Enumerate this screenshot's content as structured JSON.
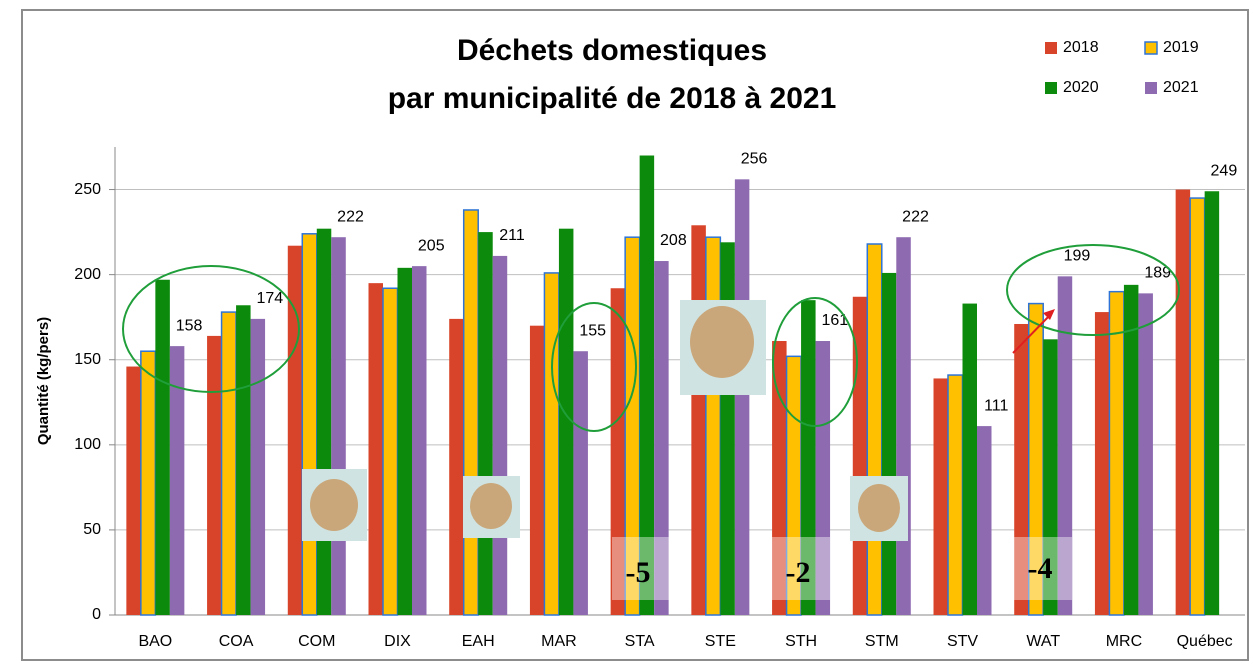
{
  "chart_data": {
    "type": "bar",
    "title": [
      "Déchets domestiques",
      "par municipalité de 2018 à 2021"
    ],
    "ylabel": "Quantité  (kg/pers)",
    "categories": [
      "BAO",
      "COA",
      "COM",
      "DIX",
      "EAH",
      "MAR",
      "STA",
      "STE",
      "STH",
      "STM",
      "STV",
      "WAT",
      "MRC",
      "Québec"
    ],
    "series": [
      {
        "name": "2018",
        "color": "#d8442a",
        "values": [
          146,
          164,
          217,
          195,
          174,
          170,
          192,
          229,
          161,
          187,
          139,
          171,
          178,
          250
        ]
      },
      {
        "name": "2019",
        "color": "#ffc000",
        "edgecolor": "#2e74d6",
        "values": [
          155,
          178,
          224,
          192,
          238,
          201,
          222,
          222,
          152,
          218,
          141,
          183,
          190,
          245
        ]
      },
      {
        "name": "2020",
        "color": "#0b8a0b",
        "values": [
          197,
          182,
          227,
          204,
          225,
          227,
          270,
          219,
          185,
          201,
          183,
          162,
          194,
          249
        ],
        "value_labels": [
          null,
          null,
          null,
          null,
          null,
          null,
          null,
          null,
          null,
          null,
          null,
          null,
          null,
          "249"
        ]
      },
      {
        "name": "2021",
        "color": "#8e6bb0",
        "values": [
          158,
          174,
          222,
          205,
          211,
          155,
          208,
          256,
          161,
          222,
          111,
          199,
          189,
          null
        ],
        "value_labels": [
          "158",
          "174",
          "222",
          "205",
          "211",
          "155",
          "208",
          "256",
          "161",
          "222",
          "111",
          "199",
          "189",
          null
        ]
      }
    ],
    "ylim": [
      0,
      275
    ],
    "yticks": [
      0,
      50,
      100,
      150,
      200,
      250
    ],
    "grid": true,
    "legend": "upper right",
    "annotations": [
      "-5",
      "-2",
      "-4"
    ]
  }
}
